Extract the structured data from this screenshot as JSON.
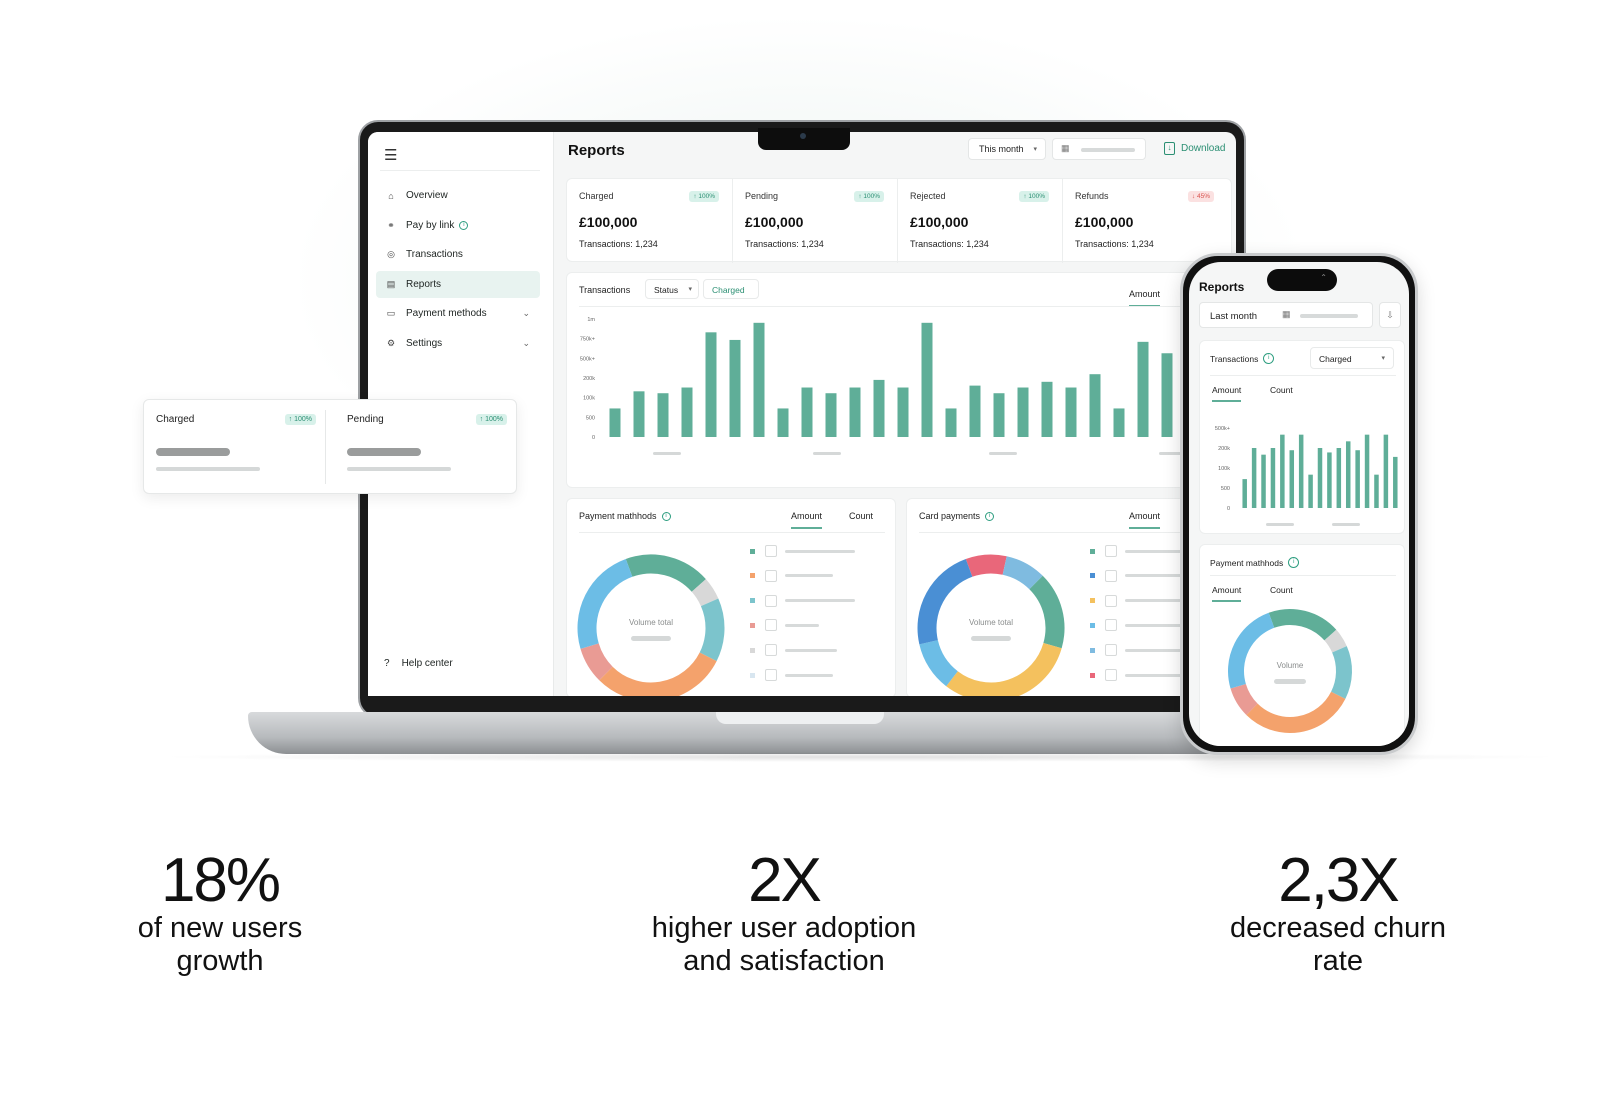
{
  "sidebar": {
    "menu_icon": "hamburger-icon",
    "items": [
      {
        "label": "Overview",
        "icon": "home-icon"
      },
      {
        "label": "Pay by link",
        "icon": "link-icon"
      },
      {
        "label": "Transactions",
        "icon": "transactions-icon"
      },
      {
        "label": "Reports",
        "icon": "report-icon",
        "active": true
      },
      {
        "label": "Payment methods",
        "icon": "wallet-icon"
      },
      {
        "label": "Settings",
        "icon": "gear-icon"
      }
    ],
    "help": "Help center"
  },
  "header": {
    "title": "Reports",
    "period": "This month",
    "download": "Download"
  },
  "kpis": [
    {
      "label": "Charged",
      "badge": "↑ 100%",
      "value": "£100,000",
      "sub": "Transactions: 1,234"
    },
    {
      "label": "Pending",
      "badge": "↑ 100%",
      "value": "£100,000",
      "sub": "Transactions: 1,234"
    },
    {
      "label": "Rejected",
      "badge": "↑ 100%",
      "value": "£100,000",
      "sub": "Transactions: 1,234"
    },
    {
      "label": "Refunds",
      "badge": "↓ 45%",
      "value": "£100,000",
      "sub": "Transactions: 1,234"
    }
  ],
  "transactions_chart": {
    "label": "Transactions",
    "status_filter": "Status",
    "status_value": "Charged",
    "tab": "Amount"
  },
  "chart_data": [
    {
      "type": "bar",
      "id": "laptop-transactions",
      "y_ticks": [
        "1m",
        "750k+",
        "500k+",
        "200k",
        "100k",
        "500",
        "0"
      ],
      "values": [
        1.5,
        2.4,
        2.3,
        2.6,
        5.5,
        5.1,
        6.0,
        1.5,
        2.6,
        2.3,
        2.6,
        3.0,
        2.6,
        6.0,
        1.5,
        2.7,
        2.3,
        2.6,
        2.9,
        2.6,
        3.3,
        1.5,
        5.0,
        4.4,
        6.0,
        3.0
      ],
      "scale_max": 6.2,
      "color": "#5fae98"
    },
    {
      "type": "bar",
      "id": "phone-transactions",
      "y_ticks": [
        "500k+",
        "200k",
        "100k",
        "500",
        "0"
      ],
      "values": [
        1.3,
        2.7,
        2.4,
        2.7,
        3.3,
        2.6,
        3.3,
        1.5,
        2.7,
        2.5,
        2.7,
        3.0,
        2.6,
        3.3,
        1.5,
        3.3,
        2.3
      ],
      "scale_max": 3.6,
      "color": "#5fae98"
    },
    {
      "type": "pie",
      "id": "payment-methods-donut",
      "center_label": "Volume total",
      "slices": [
        {
          "value": 19,
          "color": "#5fae98"
        },
        {
          "value": 5,
          "color": "#d8d8d8"
        },
        {
          "value": 14,
          "color": "#7cc4cc"
        },
        {
          "value": 30,
          "color": "#f4a26c"
        },
        {
          "value": 8,
          "color": "#e99b94"
        },
        {
          "value": 24,
          "color": "#6cbde6"
        }
      ]
    },
    {
      "type": "pie",
      "id": "card-payments-donut",
      "center_label": "Volume total",
      "slices": [
        {
          "value": 9,
          "color": "#e9677a"
        },
        {
          "value": 9,
          "color": "#7fbbe0"
        },
        {
          "value": 17,
          "color": "#5fae98"
        },
        {
          "value": 31,
          "color": "#f4c15e"
        },
        {
          "value": 11,
          "color": "#6cbde6"
        },
        {
          "value": 23,
          "color": "#4a8fd4"
        }
      ]
    },
    {
      "type": "pie",
      "id": "phone-payment-donut",
      "center_label": "Volume",
      "slices": [
        {
          "value": 19,
          "color": "#5fae98"
        },
        {
          "value": 5,
          "color": "#d8d8d8"
        },
        {
          "value": 14,
          "color": "#7cc4cc"
        },
        {
          "value": 30,
          "color": "#f4a26c"
        },
        {
          "value": 8,
          "color": "#e99b94"
        },
        {
          "value": 24,
          "color": "#6cbde6"
        }
      ]
    }
  ],
  "payment_methods": {
    "title": "Payment mathhods",
    "tabs": [
      "Amount",
      "Count"
    ],
    "legend_colors": [
      "#5fae98",
      "#f4a26c",
      "#7cc4cc",
      "#e99b94",
      "#d8d8d8",
      "#d8e6f0"
    ]
  },
  "card_payments": {
    "title": "Card payments",
    "tab": "Amount",
    "legend_colors": [
      "#5fae98",
      "#4a8fd4",
      "#f4c15e",
      "#6cbde6",
      "#7fbbe0",
      "#e9677a"
    ]
  },
  "float_card": [
    {
      "label": "Charged",
      "badge": "↑ 100%"
    },
    {
      "label": "Pending",
      "badge": "↑ 100%"
    }
  ],
  "phone": {
    "title": "Reports",
    "period": "Last month",
    "transactions_label": "Transactions",
    "status_value": "Charged",
    "tabs": [
      "Amount",
      "Count"
    ],
    "payment_methods_title": "Payment mathhods",
    "pm_tabs": [
      "Amount",
      "Count"
    ]
  },
  "stats": [
    {
      "number": "18%",
      "line1": "of new users",
      "line2": "growth"
    },
    {
      "number": "2X",
      "line1": "higher user adoption",
      "line2": "and satisfaction"
    },
    {
      "number": "2,3X",
      "line1": "decreased churn",
      "line2": "rate"
    }
  ]
}
